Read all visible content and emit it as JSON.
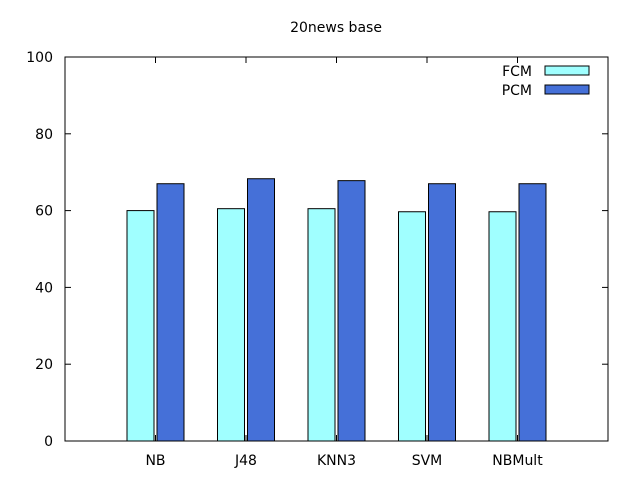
{
  "chart_data": {
    "type": "bar",
    "title": "20news base",
    "xlabel": "",
    "ylabel": "",
    "categories": [
      "NB",
      "J48",
      "KNN3",
      "SVM",
      "NBMult"
    ],
    "series": [
      {
        "name": "FCM",
        "color": "#a0ffff",
        "values": [
          60.0,
          60.5,
          60.5,
          59.7,
          59.7
        ]
      },
      {
        "name": "PCM",
        "color": "#4570d8",
        "values": [
          67.0,
          68.3,
          67.8,
          67.0,
          67.0
        ]
      }
    ],
    "ylim": [
      0,
      100
    ],
    "yticks": [
      0,
      20,
      40,
      60,
      80,
      100
    ],
    "grid": false,
    "legend_position": "top-right"
  }
}
